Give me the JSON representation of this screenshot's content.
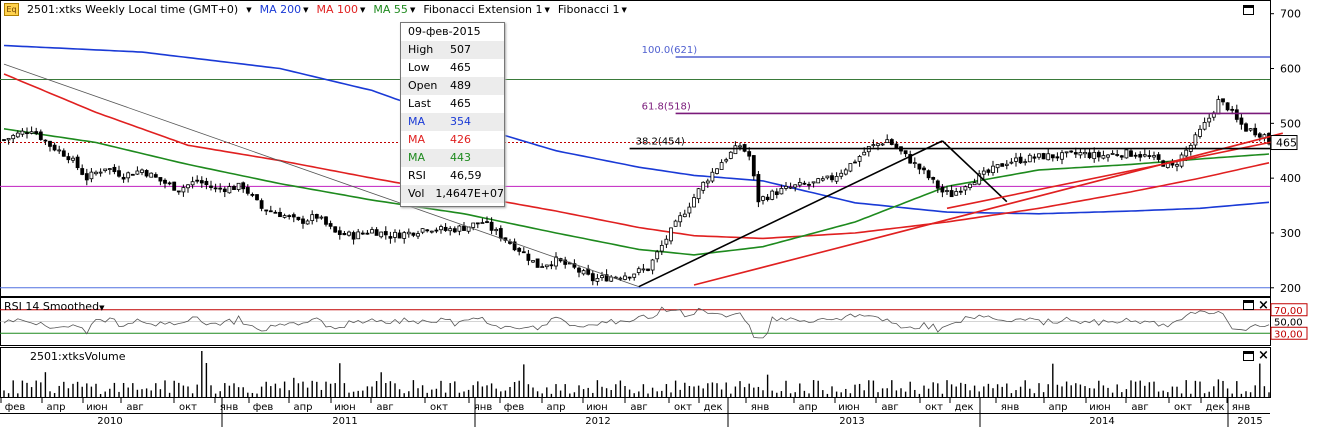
{
  "header": {
    "title": "2501:xtks Weekly Local time (GMT+0)",
    "items": [
      {
        "label": "MA 200",
        "color": "#1a3ad6"
      },
      {
        "label": "MA 100",
        "color": "#e02020"
      },
      {
        "label": "MA 55",
        "color": "#1e8a1e"
      },
      {
        "label": "Fibonacci Extension 1",
        "color": "#000000"
      },
      {
        "label": "Fibonacci 1",
        "color": "#000000"
      }
    ]
  },
  "tooltip": [
    {
      "k": "",
      "v": "09-фев-2015",
      "color": "#000000"
    },
    {
      "k": "High",
      "v": "507",
      "color": "#000000"
    },
    {
      "k": "Low",
      "v": "465",
      "color": "#000000"
    },
    {
      "k": "Open",
      "v": "489",
      "color": "#000000"
    },
    {
      "k": "Last",
      "v": "465",
      "color": "#000000"
    },
    {
      "k": "MA",
      "v": "354",
      "color": "#1a3ad6"
    },
    {
      "k": "MA",
      "v": "426",
      "color": "#e02020"
    },
    {
      "k": "MA",
      "v": "443",
      "color": "#1e8a1e"
    },
    {
      "k": "RSI",
      "v": "46,59",
      "color": "#000000"
    },
    {
      "k": "Vol",
      "v": "1,4647E+07",
      "color": "#000000"
    }
  ],
  "rsi_panel": {
    "title": "RSI 14 Smoothed",
    "levels": [
      "70,00",
      "50,00",
      "30,00"
    ]
  },
  "volume_panel": {
    "title": "2501:xtksVolume"
  },
  "chart_data": {
    "type": "candlestick",
    "price_axis": {
      "ticks": [
        200,
        300,
        400,
        500,
        600,
        700
      ],
      "ylim": [
        185,
        725
      ]
    },
    "last_price_label": "465",
    "fibonacci_levels": [
      {
        "label": "100.0(621)",
        "value": 621
      },
      {
        "label": "61.8(518)",
        "value": 518
      },
      {
        "label": "38.2(454)",
        "value": 454
      }
    ],
    "horizontal_lines": [
      {
        "value": 580,
        "color": "#3a7a3a"
      },
      {
        "value": 385,
        "color": "#c020c0"
      },
      {
        "value": 200,
        "color": "#5070e0"
      },
      {
        "value": 465,
        "color": "#c00000",
        "dashed": true
      }
    ],
    "time_axis": {
      "months": [
        "фев",
        "апр",
        "июн",
        "авг",
        "окт",
        "янв",
        "фев",
        "апр",
        "июн",
        "авг",
        "окт",
        "янв",
        "фев",
        "апр",
        "июн",
        "авг",
        "окт",
        "дек",
        "янв",
        "апр",
        "июн",
        "авг",
        "окт",
        "дек",
        "янв",
        "апр",
        "июн",
        "авг",
        "окт",
        "дек",
        "янв"
      ],
      "years": [
        "2010",
        "2011",
        "2012",
        "2013",
        "2014",
        "2015"
      ]
    },
    "price_anchors": [
      [
        0,
        470
      ],
      [
        6,
        490
      ],
      [
        10,
        460
      ],
      [
        14,
        440
      ],
      [
        18,
        400
      ],
      [
        22,
        420
      ],
      [
        26,
        405
      ],
      [
        30,
        415
      ],
      [
        34,
        395
      ],
      [
        38,
        380
      ],
      [
        42,
        395
      ],
      [
        46,
        380
      ],
      [
        52,
        385
      ],
      [
        56,
        345
      ],
      [
        60,
        335
      ],
      [
        64,
        320
      ],
      [
        68,
        330
      ],
      [
        72,
        300
      ],
      [
        76,
        295
      ],
      [
        80,
        305
      ],
      [
        84,
        295
      ],
      [
        88,
        300
      ],
      [
        92,
        310
      ],
      [
        96,
        305
      ],
      [
        100,
        310
      ],
      [
        104,
        320
      ],
      [
        108,
        295
      ],
      [
        112,
        270
      ],
      [
        116,
        240
      ],
      [
        120,
        250
      ],
      [
        124,
        235
      ],
      [
        128,
        215
      ],
      [
        132,
        220
      ],
      [
        136,
        225
      ],
      [
        140,
        235
      ],
      [
        144,
        290
      ],
      [
        148,
        340
      ],
      [
        152,
        390
      ],
      [
        156,
        430
      ],
      [
        160,
        460
      ],
      [
        162,
        440
      ],
      [
        164,
        360
      ],
      [
        168,
        375
      ],
      [
        172,
        385
      ],
      [
        176,
        390
      ],
      [
        180,
        400
      ],
      [
        184,
        425
      ],
      [
        188,
        455
      ],
      [
        192,
        470
      ],
      [
        196,
        440
      ],
      [
        200,
        410
      ],
      [
        204,
        375
      ],
      [
        206,
        370
      ],
      [
        210,
        395
      ],
      [
        214,
        410
      ],
      [
        218,
        430
      ],
      [
        222,
        435
      ],
      [
        226,
        440
      ],
      [
        230,
        440
      ],
      [
        234,
        445
      ],
      [
        238,
        440
      ],
      [
        242,
        445
      ],
      [
        246,
        445
      ],
      [
        250,
        435
      ],
      [
        254,
        420
      ],
      [
        258,
        460
      ],
      [
        262,
        510
      ],
      [
        264,
        540
      ],
      [
        266,
        530
      ],
      [
        268,
        505
      ],
      [
        270,
        490
      ],
      [
        272,
        485
      ],
      [
        274,
        478
      ],
      [
        275,
        465
      ]
    ],
    "ma200_anchors": [
      [
        0,
        642
      ],
      [
        30,
        630
      ],
      [
        60,
        600
      ],
      [
        80,
        560
      ],
      [
        100,
        500
      ],
      [
        120,
        450
      ],
      [
        138,
        420
      ],
      [
        150,
        405
      ],
      [
        165,
        395
      ],
      [
        185,
        355
      ],
      [
        205,
        338
      ],
      [
        225,
        335
      ],
      [
        245,
        340
      ],
      [
        260,
        345
      ],
      [
        275,
        356
      ]
    ],
    "ma100_anchors": [
      [
        0,
        590
      ],
      [
        20,
        520
      ],
      [
        40,
        460
      ],
      [
        60,
        432
      ],
      [
        80,
        400
      ],
      [
        100,
        370
      ],
      [
        120,
        340
      ],
      [
        138,
        310
      ],
      [
        150,
        295
      ],
      [
        165,
        290
      ],
      [
        185,
        300
      ],
      [
        205,
        320
      ],
      [
        225,
        345
      ],
      [
        245,
        375
      ],
      [
        260,
        400
      ],
      [
        275,
        428
      ]
    ],
    "ma55_anchors": [
      [
        0,
        490
      ],
      [
        20,
        465
      ],
      [
        40,
        425
      ],
      [
        60,
        390
      ],
      [
        80,
        360
      ],
      [
        100,
        335
      ],
      [
        120,
        300
      ],
      [
        138,
        270
      ],
      [
        150,
        260
      ],
      [
        165,
        275
      ],
      [
        185,
        320
      ],
      [
        205,
        385
      ],
      [
        225,
        415
      ],
      [
        245,
        425
      ],
      [
        260,
        435
      ],
      [
        275,
        444
      ]
    ],
    "trendlines": [
      [
        [
          0,
          608
        ],
        [
          138,
          202
        ]
      ],
      [
        [
          138,
          202
        ],
        [
          204,
          468
        ]
      ],
      [
        [
          204,
          468
        ],
        [
          218,
          357
        ]
      ],
      [
        [
          150,
          205
        ],
        [
          278,
          482
        ]
      ],
      [
        [
          205,
          345
        ],
        [
          278,
          470
        ]
      ]
    ],
    "fib_segments": [
      {
        "label": "100.0(621)",
        "x0": 146,
        "x1": 278,
        "value": 621,
        "color": "#5060d0"
      },
      {
        "label": "61.8(518)",
        "x0": 146,
        "x1": 278,
        "value": 518,
        "color": "#7a1a7a"
      },
      {
        "label": "38.2(454)",
        "x0": 136,
        "x1": 278,
        "value": 454,
        "color": "#000000"
      }
    ]
  }
}
